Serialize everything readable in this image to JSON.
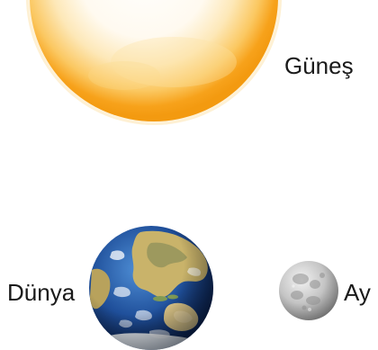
{
  "labels": {
    "sun": "Güneş",
    "earth": "Dünya",
    "moon": "Ay"
  },
  "icons": {
    "sun": "sun-icon",
    "earth": "earth-icon",
    "moon": "moon-icon"
  },
  "colors": {
    "sun_core": "#fffdf5",
    "sun_mid": "#fde3a4",
    "sun_edge": "#f7a21b",
    "earth_ocean": "#1f4f9a",
    "earth_land": "#d9c27a",
    "moon_surface": "#cfcfcf",
    "moon_shadow": "#8a8a8a"
  }
}
